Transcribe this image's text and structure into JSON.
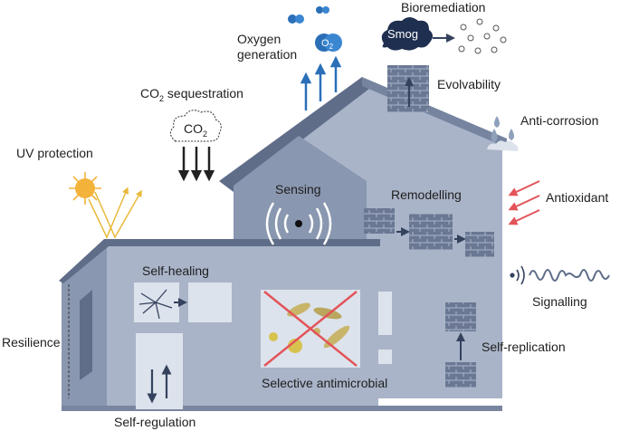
{
  "labels": {
    "bioremediation": "Bioremediation",
    "smog": "Smog",
    "oxygen_line1": "Oxygen",
    "oxygen_line2": "generation",
    "o2_base": "O",
    "o2_sub": "2",
    "evolvability": "Evolvability",
    "co2_seq_base": "CO",
    "co2_seq_sub": "2",
    "co2_seq_rest": " sequestration",
    "co2_cloud_base": "CO",
    "co2_cloud_sub": "2",
    "anti_corrosion": "Anti-corrosion",
    "uv_protection": "UV protection",
    "sensing": "Sensing",
    "remodelling": "Remodelling",
    "antioxidant": "Antioxidant",
    "self_healing": "Self-healing",
    "signalling": "Signalling",
    "resilience": "Resilience",
    "self_replication": "Self-replication",
    "selective_antimicrobial": "Selective antimicrobial",
    "self_regulation": "Self-regulation"
  },
  "colors": {
    "wall_light": "#a9b4c8",
    "wall_mid": "#8a97b0",
    "roof_dark": "#5f6d89",
    "brick": "#6b7894",
    "arrow_blue": "#2a6fb8",
    "arrow_red": "#e2545a",
    "sun": "#f3b23a",
    "smog": "#1f2f4f",
    "dark_text": "#1e1e1e"
  }
}
